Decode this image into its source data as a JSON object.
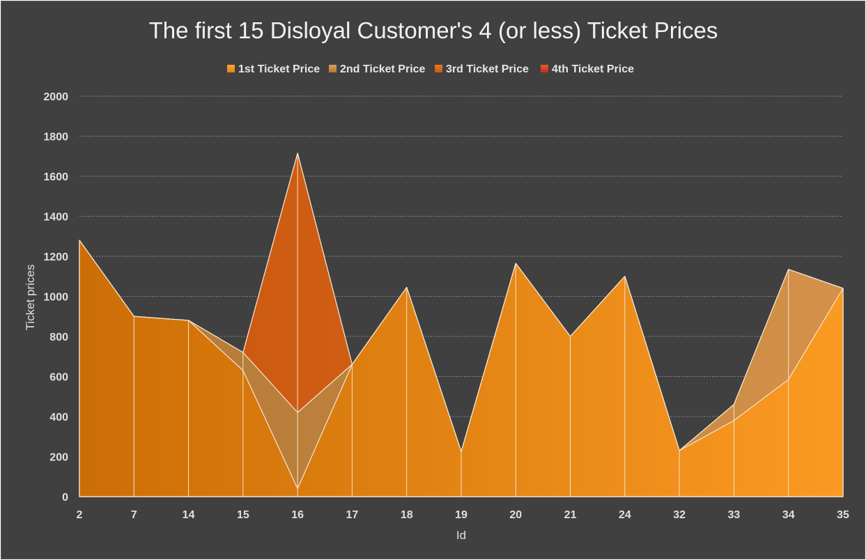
{
  "chart_data": {
    "type": "area",
    "title": "The first 15 Disloyal Customer's 4 (or less) Ticket Prices",
    "xlabel": "Id",
    "ylabel": "Ticket prices",
    "categories": [
      "2",
      "7",
      "14",
      "15",
      "16",
      "17",
      "18",
      "19",
      "20",
      "21",
      "24",
      "32",
      "33",
      "34",
      "35"
    ],
    "ylim": [
      0,
      2000
    ],
    "yticks": [
      0,
      200,
      400,
      600,
      800,
      1000,
      1200,
      1400,
      1600,
      1800,
      2000
    ],
    "grid": true,
    "legend_position": "top",
    "series": [
      {
        "name": "1st Ticket Price",
        "color": "#f2921c",
        "values": [
          1280,
          900,
          880,
          630,
          40,
          660,
          1045,
          225,
          1165,
          800,
          1100,
          230,
          380,
          585,
          1040
        ]
      },
      {
        "name": "2nd Ticket Price",
        "color": "#c98a3f",
        "values": [
          1280,
          900,
          880,
          720,
          420,
          660,
          1045,
          225,
          1165,
          800,
          1100,
          230,
          460,
          1135,
          1040
        ]
      },
      {
        "name": "3rd Ticket Price",
        "color": "#d9631a",
        "values": [
          1280,
          900,
          880,
          720,
          1715,
          660,
          1045,
          225,
          1165,
          800,
          1100,
          230,
          460,
          1135,
          1040
        ]
      },
      {
        "name": "4th Ticket Price",
        "color": "#d43a1c",
        "values": [
          1280,
          900,
          880,
          720,
          1715,
          660,
          1045,
          225,
          1165,
          800,
          1100,
          230,
          460,
          1135,
          1040
        ]
      }
    ]
  }
}
